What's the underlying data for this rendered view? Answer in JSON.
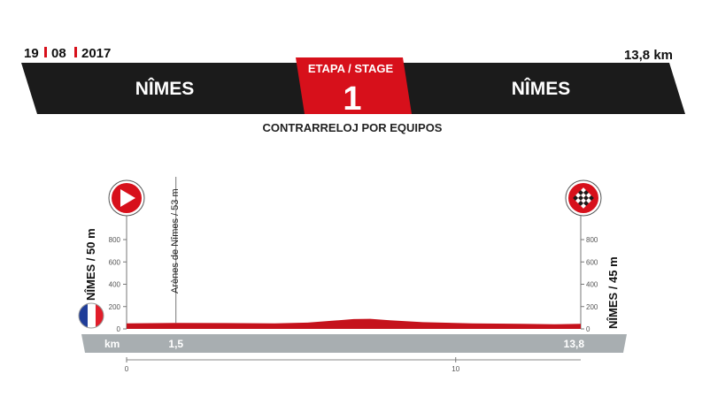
{
  "header": {
    "date_day": "19",
    "date_month": "08",
    "date_year": "2017",
    "distance": "13,8 km",
    "start_city": "NÎMES",
    "finish_city": "NÎMES",
    "stage_label": "ETAPA / STAGE",
    "stage_number": "1",
    "stage_type": "CONTRARRELOJ POR EQUIPOS"
  },
  "colors": {
    "banner": "#1b1b1b",
    "accent": "#d7101b",
    "profile": "#c5121c",
    "axis_band": "#a8aeb1",
    "grid": "#666666"
  },
  "icons": {
    "start": "play-arrow-icon",
    "finish": "checkered-flag-icon",
    "country": "france-flag-icon"
  },
  "chart_data": {
    "type": "area",
    "x_unit": "km",
    "y_ticks": [
      0,
      200,
      400,
      600,
      800
    ],
    "ylim": [
      0,
      1000
    ],
    "xlim": [
      0,
      13.8
    ],
    "x_ticks": [
      0,
      10
    ],
    "distance_labels": [
      "1,5",
      "13,8"
    ],
    "start": {
      "label": "NÎMES / 50 m",
      "km": 0,
      "alt": 50
    },
    "finish": {
      "label": "NÎMES / 45 m",
      "km": 13.8,
      "alt": 45
    },
    "points_of_interest": [
      {
        "label": "Arènes de Nîmes / 53 m",
        "km": 1.5,
        "alt": 53
      }
    ],
    "profile": {
      "km": [
        0,
        1.5,
        3,
        4.5,
        5.5,
        6.2,
        6.9,
        7.4,
        8.0,
        9.0,
        10.5,
        12.0,
        13.0,
        13.8
      ],
      "alt": [
        50,
        53,
        52,
        50,
        56,
        72,
        88,
        90,
        78,
        60,
        50,
        45,
        42,
        45
      ]
    }
  }
}
